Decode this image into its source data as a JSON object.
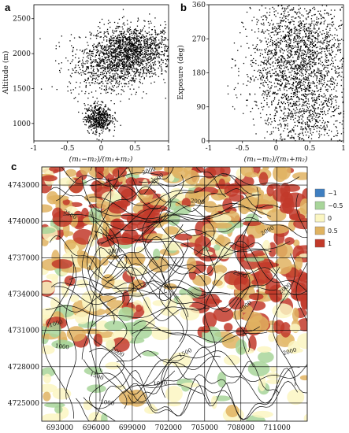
{
  "panels": {
    "a": {
      "letter": "a",
      "chart_data": {
        "type": "scatter",
        "ylabel": "Altitude (m)",
        "xlabel": "(m₁−m₂)/(m₁+m₂)",
        "xlim": [
          -1,
          1
        ],
        "ylim": [
          750,
          2700
        ],
        "xticks": [
          "-1",
          "-0.5",
          "0",
          "0.5",
          "1"
        ],
        "xtick_values": [
          -1,
          -0.5,
          0,
          0.5,
          1
        ],
        "yticks": [
          "1000",
          "1500",
          "2000",
          "2500"
        ],
        "ytick_values": [
          1000,
          1500,
          2000,
          2500
        ],
        "clusters": [
          {
            "x_center": 0.45,
            "y_center": 2050,
            "x_spread": 0.3,
            "y_spread": 180,
            "weight": 0.55
          },
          {
            "x_center": 0.1,
            "y_center": 1800,
            "x_spread": 0.3,
            "y_spread": 200,
            "weight": 0.25
          },
          {
            "x_center": -0.05,
            "y_center": 1080,
            "x_spread": 0.1,
            "y_spread": 100,
            "weight": 0.2
          }
        ]
      }
    },
    "b": {
      "letter": "b",
      "chart_data": {
        "type": "scatter",
        "ylabel": "Exposure (deg)",
        "xlabel": "(m₁−m₂)/(m₁+m₂)",
        "xlim": [
          -1,
          1
        ],
        "ylim": [
          0,
          360
        ],
        "xticks": [
          "-1",
          "-0.5",
          "0",
          "0.5",
          "1"
        ],
        "xtick_values": [
          -1,
          -0.5,
          0,
          0.5,
          1
        ],
        "yticks": [
          "0",
          "90",
          "180",
          "270",
          "360"
        ],
        "ytick_values": [
          0,
          90,
          180,
          270,
          360
        ],
        "clusters": [
          {
            "x_center": 0.35,
            "y_center": 270,
            "x_spread": 0.35,
            "y_spread": 60,
            "weight": 0.4
          },
          {
            "x_center": 0.3,
            "y_center": 180,
            "x_spread": 0.4,
            "y_spread": 50,
            "weight": 0.3
          },
          {
            "x_center": 0.45,
            "y_center": 70,
            "x_spread": 0.35,
            "y_spread": 60,
            "weight": 0.3
          }
        ]
      }
    },
    "c": {
      "letter": "c",
      "chart_data": {
        "type": "heatmap",
        "xticks": [
          "693000",
          "696000",
          "699000",
          "702000",
          "705000",
          "708000",
          "711000"
        ],
        "yticks": [
          "4743000",
          "4740000",
          "4737000",
          "4734000",
          "4731000",
          "4728000",
          "4725000"
        ],
        "xlim": [
          691500,
          713500
        ],
        "ylim": [
          4723500,
          4744500
        ],
        "legend": [
          {
            "label": "−1",
            "color": "#3f7fc1"
          },
          {
            "label": "−0.5",
            "color": "#a8d59a"
          },
          {
            "label": "0",
            "color": "#fbf6c2"
          },
          {
            "label": "0.5",
            "color": "#e0b361"
          },
          {
            "label": "1",
            "color": "#c23a2a"
          }
        ],
        "contour_labels": [
          "1500",
          "2000",
          "2000",
          "2500",
          "2000",
          "2000",
          "2500",
          "2000",
          "1000",
          "1000",
          "2000",
          "1500",
          "1000",
          "1500",
          "2000",
          "2000",
          "1000"
        ]
      }
    }
  },
  "colors": {
    "dot": "#000000",
    "grid": "#000000",
    "map_bg": "#ffffff"
  }
}
